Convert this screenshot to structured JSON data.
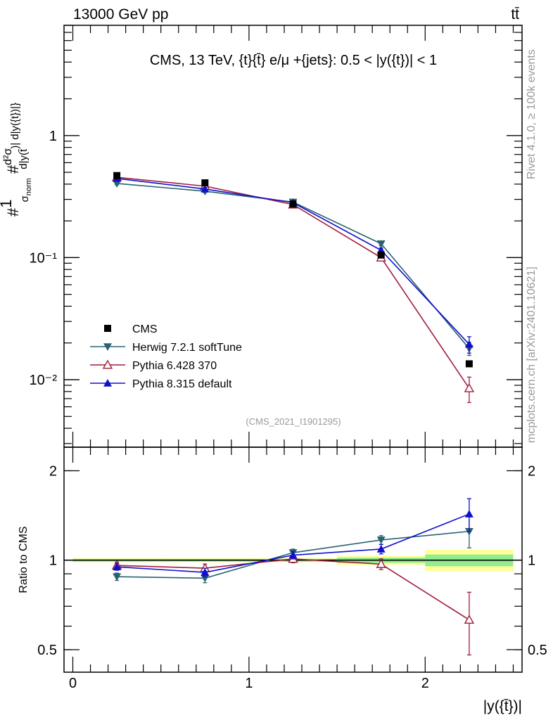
{
  "header": {
    "left": "13000 GeV pp",
    "right": "tt̄"
  },
  "side_labels": {
    "rivet": "Rivet 4.1.0, ≥ 100k events",
    "mcplots": "mcplots.cern.ch [arXiv:2401.10621]"
  },
  "chart_data": [
    {
      "type": "line",
      "panel": "main",
      "title": "CMS, 13 TeV, {t}{t̄} e/μ +{jets}: 0.5 < |y({t})| < 1",
      "watermark": "(CMS_2021_I1901295)",
      "ylabel": "#frac{1}{σ_norm} #frac{d²σ}{d|y(t̄)| d|y({t})|}",
      "yscale": "log",
      "xlim": [
        -0.05,
        2.55
      ],
      "ylim": [
        0.0028,
        8
      ],
      "y_ticks": [
        {
          "value": 1,
          "label": "1"
        },
        {
          "value": 0.1,
          "label": "10⁻¹"
        },
        {
          "value": 0.01,
          "label": "10⁻²"
        }
      ],
      "x": [
        0.25,
        0.75,
        1.25,
        1.75,
        2.25
      ],
      "x_bins": [
        [
          0,
          0.5
        ],
        [
          0.5,
          1
        ],
        [
          1,
          1.5
        ],
        [
          1.5,
          2
        ],
        [
          2,
          2.5
        ]
      ],
      "legend": {
        "placement": "lower-left",
        "entries": [
          "CMS",
          "Herwig 7.2.1 softTune",
          "Pythia 6.428 370",
          "Pythia 8.315 default"
        ]
      },
      "series": [
        {
          "name": "CMS",
          "color": "#000000",
          "marker": "square",
          "values": [
            0.47,
            0.41,
            0.275,
            0.105,
            0.0135
          ]
        },
        {
          "name": "Herwig 7.2.1 softTune",
          "color": "#2a6270",
          "marker": "triangle-down",
          "values": [
            0.405,
            0.35,
            0.285,
            0.13,
            0.018
          ],
          "errors": [
            0.01,
            0.01,
            0.008,
            0.005,
            0.0022
          ]
        },
        {
          "name": "Pythia 6.428 370",
          "color": "#a01d3c",
          "marker": "triangle-up-open",
          "values": [
            0.455,
            0.385,
            0.272,
            0.1,
            0.0085
          ],
          "errors": [
            0.01,
            0.01,
            0.008,
            0.005,
            0.002
          ]
        },
        {
          "name": "Pythia 8.315 default",
          "color": "#1010cc",
          "marker": "triangle-up",
          "values": [
            0.445,
            0.365,
            0.282,
            0.115,
            0.0195
          ],
          "errors": [
            0.01,
            0.01,
            0.008,
            0.005,
            0.003
          ]
        }
      ]
    },
    {
      "type": "line",
      "panel": "ratio",
      "ylabel": "Ratio to CMS",
      "xlabel": "|y({t̄})|",
      "yscale": "log",
      "xlim": [
        -0.05,
        2.55
      ],
      "ylim": [
        0.42,
        2.4
      ],
      "y_ticks": [
        {
          "value": 2,
          "label": "2"
        },
        {
          "value": 1,
          "label": "1"
        },
        {
          "value": 0.5,
          "label": "0.5"
        }
      ],
      "x_ticks": [
        {
          "value": 0,
          "label": "0"
        },
        {
          "value": 1,
          "label": "1"
        },
        {
          "value": 2,
          "label": "2"
        }
      ],
      "x": [
        0.25,
        0.75,
        1.25,
        1.75,
        2.25
      ],
      "bands": [
        {
          "x0": 0,
          "x1": 0.5,
          "inner": [
            0.99,
            1.01
          ],
          "outer": [
            0.985,
            1.015
          ]
        },
        {
          "x0": 0.5,
          "x1": 1,
          "inner": [
            0.99,
            1.01
          ],
          "outer": [
            0.985,
            1.015
          ]
        },
        {
          "x0": 1,
          "x1": 1.5,
          "inner": [
            0.99,
            1.01
          ],
          "outer": [
            0.985,
            1.015
          ]
        },
        {
          "x0": 1.5,
          "x1": 2,
          "inner": [
            0.98,
            1.02
          ],
          "outer": [
            0.965,
            1.035
          ]
        },
        {
          "x0": 2,
          "x1": 2.5,
          "inner": [
            0.955,
            1.045
          ],
          "outer": [
            0.92,
            1.085
          ]
        }
      ],
      "band_colors": {
        "inner": "#90ee90",
        "outer": "#ffff99"
      },
      "series": [
        {
          "name": "Herwig 7.2.1 softTune",
          "color": "#2a6270",
          "marker": "triangle-down",
          "values": [
            0.88,
            0.87,
            1.06,
            1.17,
            1.25
          ],
          "errors": [
            0.025,
            0.03,
            0.03,
            0.04,
            0.15
          ]
        },
        {
          "name": "Pythia 6.428 370",
          "color": "#a01d3c",
          "marker": "triangle-up-open",
          "values": [
            0.96,
            0.94,
            1.01,
            0.97,
            0.63
          ],
          "errors": [
            0.025,
            0.03,
            0.03,
            0.04,
            0.15
          ]
        },
        {
          "name": "Pythia 8.315 default",
          "color": "#1010cc",
          "marker": "triangle-up",
          "values": [
            0.95,
            0.91,
            1.04,
            1.09,
            1.43
          ],
          "errors": [
            0.025,
            0.03,
            0.03,
            0.04,
            0.18
          ]
        }
      ]
    }
  ]
}
